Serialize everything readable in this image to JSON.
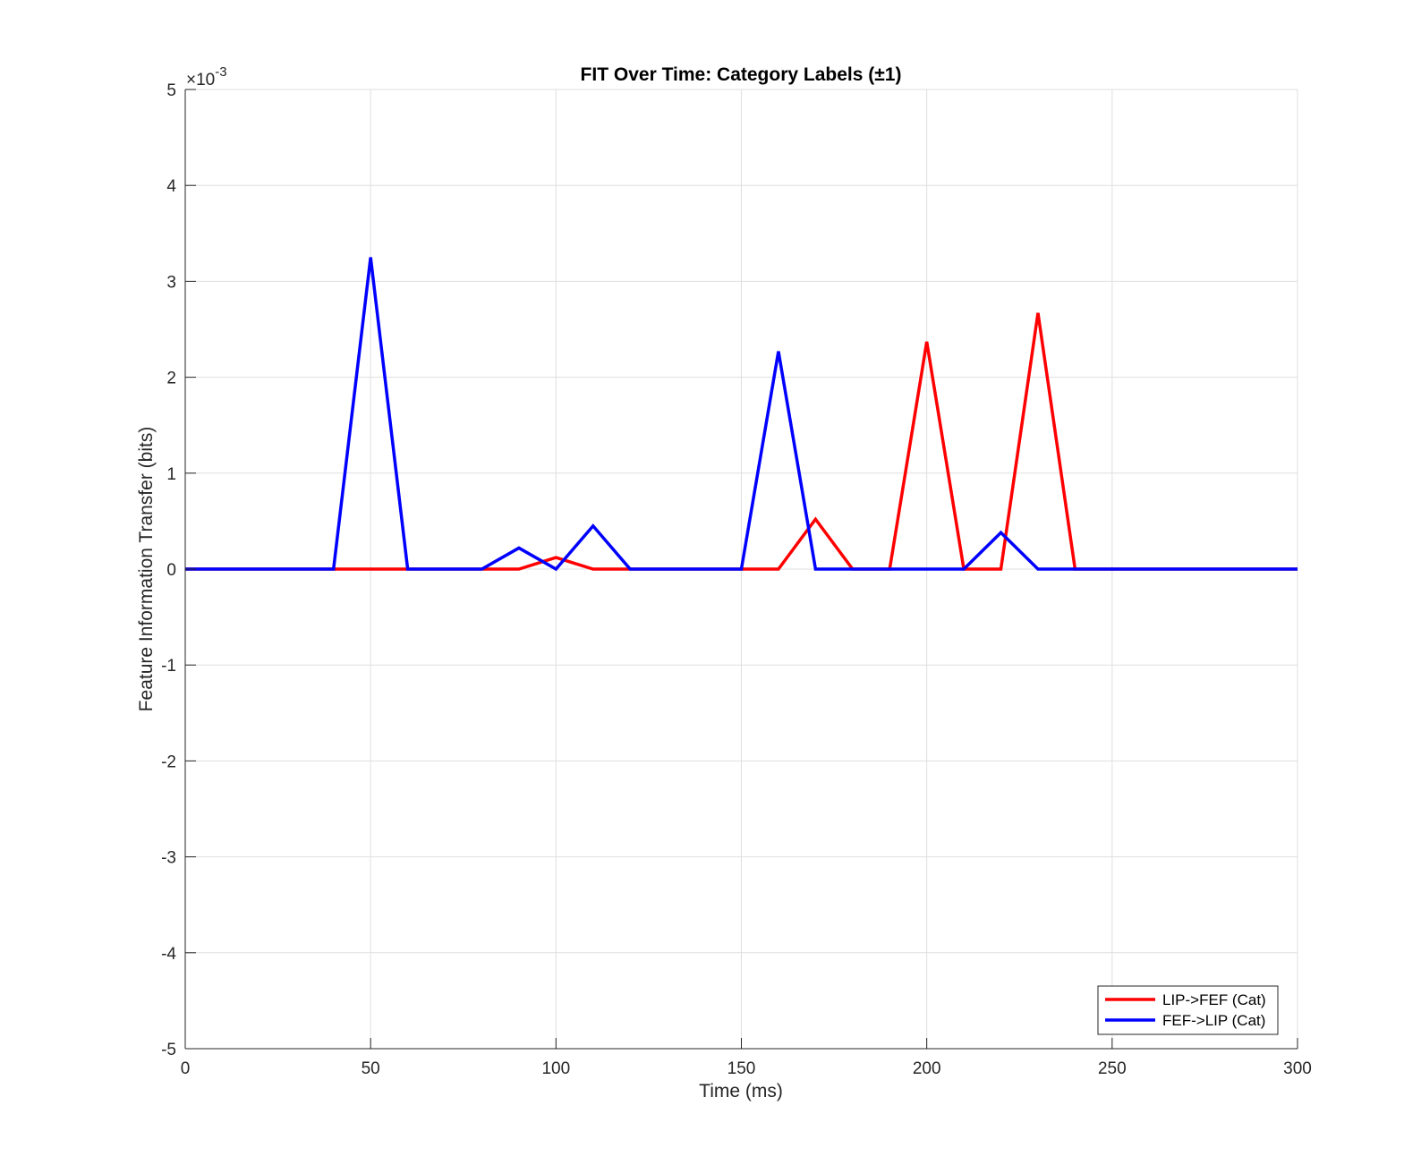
{
  "chart_data": {
    "type": "line",
    "title": "FIT Over Time: Category Labels (±1)",
    "xlabel": "Time (ms)",
    "ylabel": "Feature Information Transfer (bits)",
    "y_exponent_label": "×10",
    "y_exponent_power": "-3",
    "xlim": [
      0,
      300
    ],
    "ylim": [
      -5,
      5
    ],
    "y_scale_factor": 0.001,
    "xticks": [
      0,
      50,
      100,
      150,
      200,
      250,
      300
    ],
    "yticks": [
      -5,
      -4,
      -3,
      -2,
      -1,
      0,
      1,
      2,
      3,
      4,
      5
    ],
    "grid": true,
    "legend_position": "bottom-right",
    "x": [
      0,
      10,
      20,
      30,
      40,
      50,
      60,
      70,
      80,
      90,
      100,
      110,
      120,
      130,
      140,
      150,
      160,
      170,
      180,
      190,
      200,
      210,
      220,
      230,
      240,
      250,
      260,
      270,
      280,
      290,
      300
    ],
    "series": [
      {
        "name": "LIP->FEF (Cat)",
        "color": "#ff0000",
        "values": [
          0,
          0,
          0,
          0,
          0,
          0,
          0,
          0,
          0,
          0,
          0.12,
          0,
          0,
          0,
          0,
          0,
          0,
          0.52,
          0,
          0,
          2.37,
          0,
          0,
          2.67,
          0,
          0,
          0,
          0,
          0,
          0,
          0
        ]
      },
      {
        "name": "FEF->LIP (Cat)",
        "color": "#0000ff",
        "values": [
          0,
          0,
          0,
          0,
          0,
          3.25,
          0,
          0,
          0,
          0.22,
          0,
          0.45,
          0,
          0,
          0,
          0,
          2.27,
          0,
          0,
          0,
          0,
          0,
          0.38,
          0,
          0,
          0,
          0,
          0,
          0,
          0,
          0
        ]
      }
    ]
  }
}
